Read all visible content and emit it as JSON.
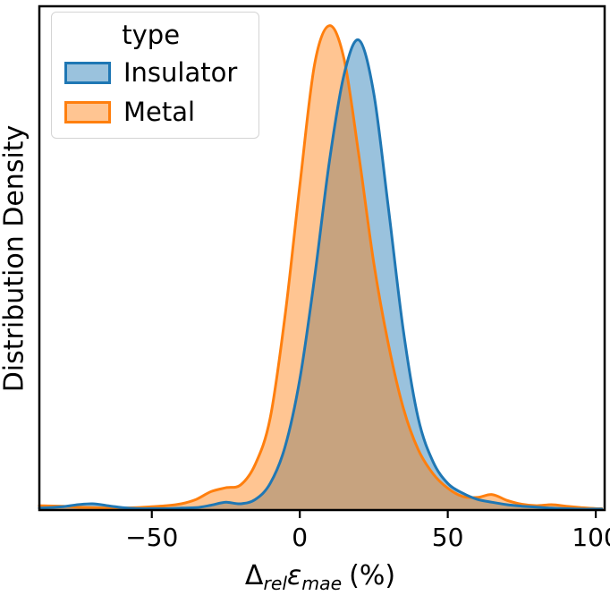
{
  "ylabel": "Distribution Density",
  "xlabel_parts": {
    "delta": "Δ",
    "sub_rel": "rel",
    "epsilon": "ε",
    "sub_mae": "mae",
    "suffix": "(%)"
  },
  "legend": {
    "title": "type",
    "entries": [
      {
        "label": "Insulator",
        "color": "#1f77b4"
      },
      {
        "label": "Metal",
        "color": "#ff7f0e"
      }
    ]
  },
  "chart_data": {
    "type": "area",
    "kind": "kde-density",
    "title": "",
    "xlabel": "Δ_rel ε_mae (%)",
    "ylabel": "Distribution Density",
    "xlim": [
      -88,
      103
    ],
    "ylim": [
      0,
      1.04
    ],
    "grid": false,
    "legend_position": "upper left",
    "fill_alpha": 0.45,
    "line_width": 3,
    "xticks": [
      {
        "value": -50,
        "label": "−50"
      },
      {
        "value": 0,
        "label": "0"
      },
      {
        "value": 50,
        "label": "50"
      },
      {
        "value": 100,
        "label": "100"
      }
    ],
    "x": [
      -88,
      -80,
      -75,
      -70,
      -65,
      -60,
      -55,
      -50,
      -45,
      -40,
      -35,
      -30,
      -25,
      -20,
      -15,
      -10,
      -5,
      0,
      5,
      10,
      15,
      20,
      25,
      30,
      35,
      40,
      45,
      50,
      55,
      60,
      65,
      70,
      75,
      80,
      85,
      90,
      95,
      100,
      102
    ],
    "series": [
      {
        "name": "Insulator",
        "color": "#1f77b4",
        "values": [
          0.004,
          0.007,
          0.011,
          0.013,
          0.009,
          0.005,
          0.003,
          0.003,
          0.003,
          0.004,
          0.005,
          0.01,
          0.016,
          0.013,
          0.022,
          0.055,
          0.13,
          0.27,
          0.48,
          0.72,
          0.9,
          0.97,
          0.86,
          0.62,
          0.37,
          0.19,
          0.1,
          0.055,
          0.035,
          0.022,
          0.016,
          0.011,
          0.008,
          0.006,
          0.004,
          0.003,
          0.002,
          0.002,
          0.002
        ]
      },
      {
        "name": "Metal",
        "color": "#ff7f0e",
        "values": [
          0.009,
          0.008,
          0.006,
          0.005,
          0.004,
          0.004,
          0.005,
          0.007,
          0.009,
          0.013,
          0.022,
          0.038,
          0.046,
          0.052,
          0.095,
          0.19,
          0.4,
          0.67,
          0.92,
          1.0,
          0.93,
          0.73,
          0.51,
          0.34,
          0.21,
          0.125,
          0.075,
          0.045,
          0.028,
          0.026,
          0.032,
          0.02,
          0.012,
          0.009,
          0.011,
          0.008,
          0.005,
          0.003,
          0.003
        ]
      }
    ]
  }
}
